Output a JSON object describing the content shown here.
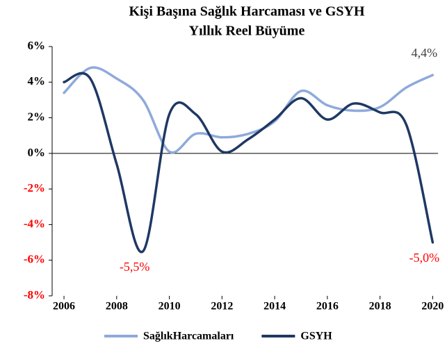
{
  "chart_data": {
    "type": "line",
    "title": "Kişi Başına Sağlık Harcaması  ve GSYH",
    "subtitle": "Yıllık Reel Büyüme",
    "x": [
      2006,
      2007,
      2008,
      2009,
      2010,
      2011,
      2012,
      2013,
      2014,
      2015,
      2016,
      2017,
      2018,
      2019,
      2020
    ],
    "series": [
      {
        "name": "SağlıkHarcamaları",
        "color": "#8eaadb",
        "values": [
          3.4,
          4.8,
          4.2,
          3.0,
          0.1,
          1.1,
          0.9,
          1.1,
          1.8,
          3.5,
          2.7,
          2.4,
          2.6,
          3.7,
          4.4
        ]
      },
      {
        "name": "GSYH",
        "color": "#1f3864",
        "values": [
          4.0,
          4.2,
          -0.6,
          -5.5,
          2.2,
          2.2,
          0.1,
          0.8,
          1.9,
          3.1,
          1.9,
          2.8,
          2.3,
          1.6,
          -5.0
        ]
      }
    ],
    "xlim": [
      2005.55,
      2020.2
    ],
    "xticks": [
      2006,
      2008,
      2010,
      2012,
      2014,
      2016,
      2018,
      2020
    ],
    "ylim": [
      -8,
      6
    ],
    "yticks": [
      {
        "value": -8,
        "label": "-8%"
      },
      {
        "value": -6,
        "label": "-6%"
      },
      {
        "value": -4,
        "label": "-4%"
      },
      {
        "value": -2,
        "label": "-2%"
      },
      {
        "value": 0,
        "label": "0%"
      },
      {
        "value": 2,
        "label": "2%"
      },
      {
        "value": 4,
        "label": "4%"
      },
      {
        "value": 6,
        "label": "6%"
      }
    ],
    "negative_color": "#ff0000",
    "annotations": [
      {
        "text": "4,4%",
        "x": 2020,
        "value": 4.4,
        "color": "#404040"
      },
      {
        "text": "-5,5%",
        "x": 2009,
        "value": -5.5,
        "color": "#ff0000"
      },
      {
        "text": "-5,0%",
        "x": 2020,
        "value": -5.0,
        "color": "#ff0000"
      }
    ],
    "legend": "bottom"
  }
}
